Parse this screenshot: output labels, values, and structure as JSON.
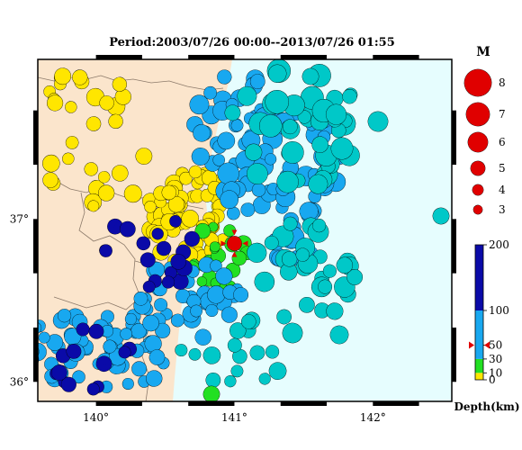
{
  "title": "Period:2003/07/26 00:00--2013/07/26 01:55",
  "colors": {
    "land": "#fbe5cc",
    "sea": "#e6fdfe",
    "yellow": "#ffe600",
    "green": "#22e022",
    "lightblue": "#18a8f0",
    "darkblue": "#0a0aa8",
    "cyan": "#00c8c8",
    "mainshock": "#e00000"
  },
  "axes": {
    "lon_labels": [
      "140°",
      "141°",
      "142°"
    ],
    "lat_labels": [
      "37°",
      "36°"
    ],
    "lon_range": [
      139.58,
      142.57
    ],
    "lat_range": [
      35.88,
      37.98
    ]
  },
  "magnitude_legend": {
    "title": "M",
    "items": [
      "8",
      "7",
      "6",
      "5",
      "4",
      "3"
    ]
  },
  "depth_scale": {
    "label": "Depth(km)",
    "ticks": [
      "200",
      "100",
      "50",
      "30",
      "10",
      "0"
    ],
    "bands": [
      {
        "from": 0,
        "to": 10,
        "color": "yellow"
      },
      {
        "from": 10,
        "to": 30,
        "color": "green"
      },
      {
        "from": 30,
        "to": 100,
        "color": "lightblue"
      },
      {
        "from": 100,
        "to": 200,
        "color": "darkblue"
      }
    ],
    "marker_depth": 50
  },
  "mainshock": {
    "lon": 141.0,
    "lat": 36.85,
    "depth_km": 50
  }
}
